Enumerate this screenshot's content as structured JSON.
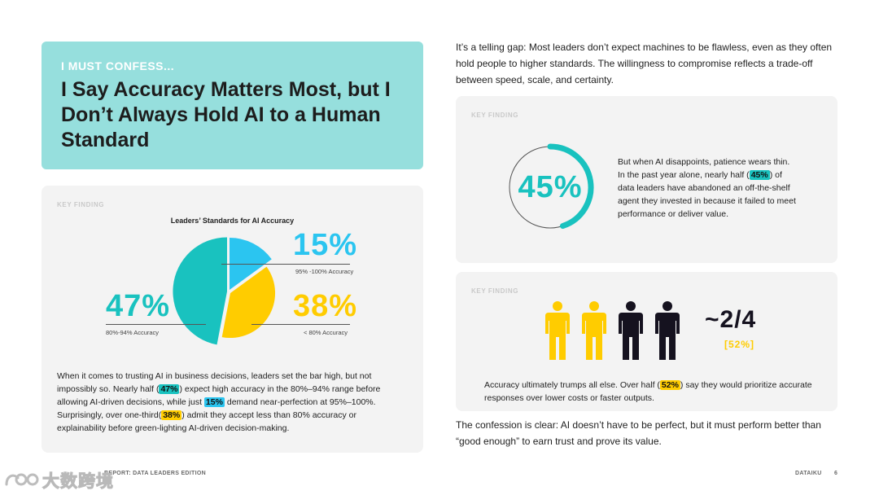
{
  "headline": {
    "kicker": "I MUST CONFESS...",
    "title": "I Say Accuracy Matters Most, but I Don’t Always Hold AI to a Human Standard"
  },
  "left_panel": {
    "key_finding_label": "KEY FINDING",
    "chart_data": {
      "type": "pie",
      "title": "Leaders’ Standards for AI Accuracy",
      "slices": [
        {
          "label": "80%-94% Accuracy",
          "value": 47,
          "display": "47%",
          "color": "#19c2bf"
        },
        {
          "label": "95% -100% Accuracy",
          "value": 15,
          "display": "15%",
          "color": "#2bc5f0"
        },
        {
          "label": "< 80% Accuracy",
          "value": 38,
          "display": "38%",
          "color": "#ffcc00"
        }
      ]
    },
    "body": {
      "p1": "When it comes to trusting AI in business decisions, leaders set the bar high, but not impossibly so. Nearly half (",
      "h1": "47%",
      "p2": ") expect high accuracy in the 80%–94% range before allowing AI-driven decisions, while just ",
      "h2": "15%",
      "p3": " demand near-perfection at 95%–100%. Surprisingly, over one-third(",
      "h3": "38%",
      "p4": ") admit they accept less than 80% accuracy or explainability before green-lighting AI-driven decision-making."
    }
  },
  "intro_text": "It’s a telling gap: Most leaders don’t expect machines to be flawless, even as they often hold people to higher standards. The willingness to compromise reflects a trade-off between speed, scale, and certainty.",
  "finding1": {
    "key_finding_label": "KEY FINDING",
    "big_value": "45%",
    "ring_value": 0.45,
    "text_a": "But when AI disappoints, patience wears thin. In the past year alone, nearly half (",
    "highlight": "45%",
    "text_b": ") of data leaders have abandoned an off-the-shelf agent they invested in because it failed to meet performance or deliver value."
  },
  "finding2": {
    "key_finding_label": "KEY FINDING",
    "fraction": "~2/4",
    "fraction_sub": "[52%]",
    "people": [
      {
        "color": "#ffcc00"
      },
      {
        "color": "#ffcc00"
      },
      {
        "color": "#15121f"
      },
      {
        "color": "#15121f"
      }
    ],
    "text_a": "Accuracy ultimately trumps all else. Over half (",
    "highlight": "52%",
    "text_b": ") say they would prioritize accurate responses over lower costs or faster outputs."
  },
  "outro_text": "The confession is clear: AI doesn’t have to be perfect, but it must perform better than “good enough” to earn trust and prove its value.",
  "footer": {
    "left_visible": "REPORT: DATA LEADERS EDITION",
    "brand": "DATAIKU",
    "page_number": "6",
    "watermark": "大数跨境"
  },
  "colors": {
    "teal": "#19c2bf",
    "blue": "#2bc5f0",
    "yellow": "#ffcc00",
    "navy": "#15121f",
    "card": "#96dfdd"
  }
}
